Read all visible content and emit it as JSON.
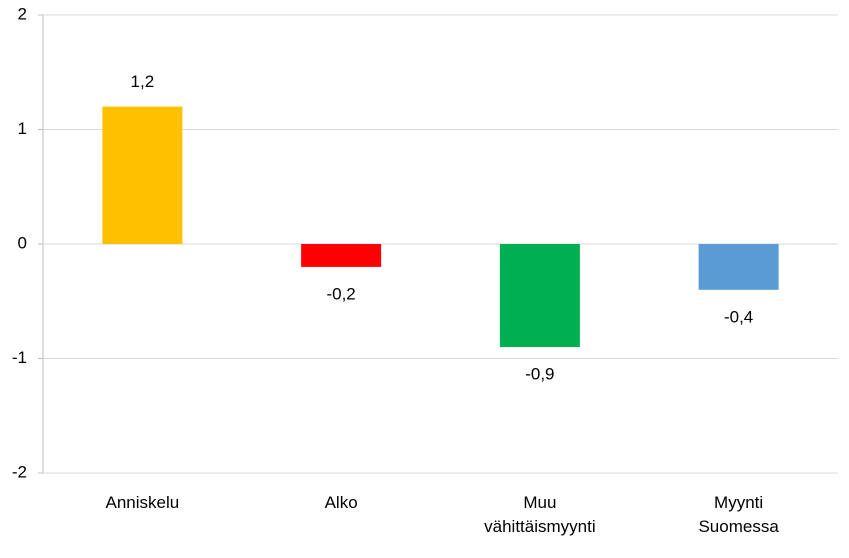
{
  "chart_data": {
    "type": "bar",
    "categories": [
      "Anniskelu",
      "Alko",
      "Muu vähittäismyynti",
      "Myynti Suomessa"
    ],
    "values": [
      1.2,
      -0.2,
      -0.9,
      -0.4
    ],
    "value_labels": [
      "1,2",
      "-0,2",
      "-0,9",
      "-0,4"
    ],
    "colors": [
      "#FFC000",
      "#FF0000",
      "#00B050",
      "#5B9BD5"
    ],
    "ylim": [
      -2,
      2
    ],
    "yticks": [
      -2,
      -1,
      0,
      1,
      2
    ],
    "grid": true
  }
}
